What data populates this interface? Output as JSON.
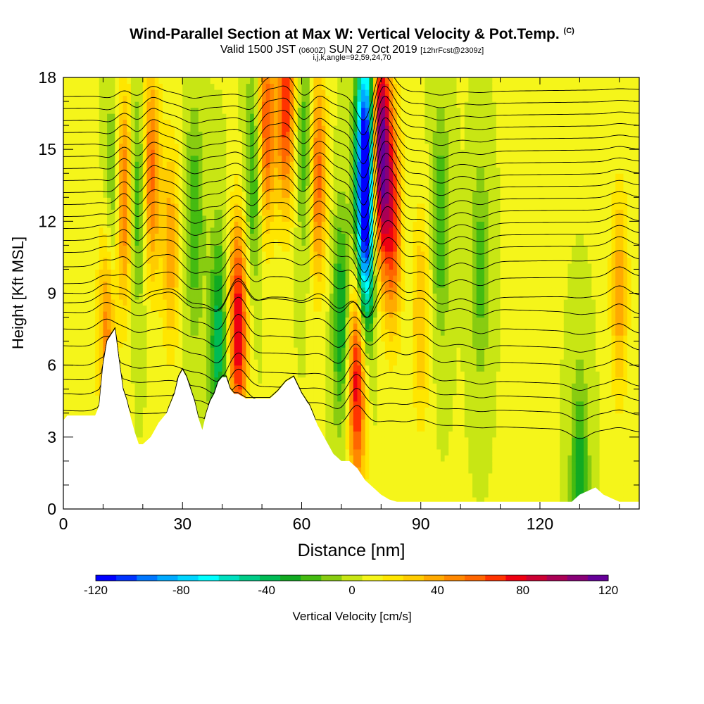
{
  "header": {
    "title_main": "Wind-Parallel Section at Max W: Vertical Velocity & Pot.Temp.",
    "title_copyright": "(C)",
    "valid_prefix": "Valid 1500 JST",
    "valid_utc": "(0600Z)",
    "valid_date": "SUN 27 Oct 2019",
    "forecast": "[12hrFcst@2309z]",
    "subline": "i,j,k,angle=92,59,24,70"
  },
  "chart_data": {
    "type": "heatmap",
    "xlabel": "Distance [nm]",
    "ylabel": "Height [Kft MSL]",
    "xlim": [
      0,
      145
    ],
    "ylim": [
      0,
      18
    ],
    "x_ticks": [
      0,
      30,
      60,
      90,
      120
    ],
    "y_ticks": [
      0,
      3,
      6,
      9,
      12,
      15,
      18
    ],
    "colorbar": {
      "label": "Vertical Velocity [cm/s]",
      "range": [
        -120,
        120
      ],
      "step": 10,
      "tick_labels": [
        -120,
        -80,
        -40,
        0,
        40,
        80,
        120
      ],
      "colors": [
        "#0000ff",
        "#0033ff",
        "#0077ff",
        "#00aaff",
        "#00d5ff",
        "#00ffff",
        "#00e0c0",
        "#00cc88",
        "#00bb55",
        "#11aa22",
        "#44bb11",
        "#88cc11",
        "#c8e614",
        "#f5f51a",
        "#ffe600",
        "#ffcc00",
        "#ffaa00",
        "#ff8800",
        "#ff6600",
        "#ff3300",
        "#ee0011",
        "#cc0033",
        "#aa0055",
        "#880077",
        "#660099"
      ]
    },
    "updraft_cores_w_cm_s": [
      {
        "x": 11,
        "y": 7.5,
        "w": 45
      },
      {
        "x": 15,
        "y": 13,
        "w": 65
      },
      {
        "x": 22,
        "y": 14,
        "w": 55
      },
      {
        "x": 27,
        "y": 11,
        "w": 35
      },
      {
        "x": 44,
        "y": 7.5,
        "w": 80
      },
      {
        "x": 51,
        "y": 16,
        "w": 60
      },
      {
        "x": 56,
        "y": 17,
        "w": 65
      },
      {
        "x": 64,
        "y": 14,
        "w": 55
      },
      {
        "x": 74,
        "y": 5.5,
        "w": 80
      },
      {
        "x": 80,
        "y": 15,
        "w": 115
      },
      {
        "x": 83,
        "y": 12,
        "w": 60
      },
      {
        "x": 90,
        "y": 8,
        "w": 30
      },
      {
        "x": 140,
        "y": 9,
        "w": 35
      }
    ],
    "downdraft_cores_w_cm_s": [
      {
        "x": 13,
        "y": 13,
        "w": -40
      },
      {
        "x": 19,
        "y": 13,
        "w": -35
      },
      {
        "x": 33,
        "y": 12,
        "w": -30
      },
      {
        "x": 39,
        "y": 7,
        "w": -45
      },
      {
        "x": 48,
        "y": 14,
        "w": -35
      },
      {
        "x": 61,
        "y": 15,
        "w": -30
      },
      {
        "x": 70,
        "y": 8,
        "w": -40
      },
      {
        "x": 76,
        "y": 15,
        "w": -110
      },
      {
        "x": 76,
        "y": 11,
        "w": -80
      },
      {
        "x": 95,
        "y": 12,
        "w": -30
      },
      {
        "x": 105,
        "y": 10,
        "w": -25
      },
      {
        "x": 130,
        "y": 1.2,
        "w": -35
      }
    ],
    "terrain_kft": {
      "x": [
        0,
        1,
        2,
        8,
        9,
        10,
        11,
        13,
        14,
        15,
        16,
        17,
        18,
        19,
        20,
        22,
        24,
        26,
        28,
        29,
        30,
        31,
        32,
        33,
        34,
        35,
        36,
        37,
        38,
        39,
        40,
        41,
        42,
        43,
        44,
        46,
        48,
        50,
        52,
        54,
        56,
        58,
        60,
        62,
        64,
        66,
        68,
        70,
        72,
        74,
        76,
        78,
        80,
        82,
        84,
        86,
        88,
        90,
        100,
        110,
        120,
        128,
        130,
        134,
        136,
        140,
        145
      ],
      "y": [
        3.7,
        3.9,
        3.9,
        3.9,
        4.3,
        6.0,
        7.0,
        7.5,
        6.2,
        5.0,
        4.5,
        3.8,
        3.2,
        2.7,
        2.7,
        3.0,
        3.6,
        4.0,
        4.8,
        5.5,
        5.8,
        5.5,
        5.0,
        4.5,
        3.8,
        3.3,
        4.0,
        4.5,
        4.8,
        5.3,
        5.5,
        5.5,
        5.0,
        4.8,
        4.8,
        4.6,
        4.6,
        4.6,
        4.6,
        4.9,
        5.3,
        5.5,
        4.8,
        4.3,
        3.5,
        2.9,
        2.3,
        2.0,
        2.0,
        1.7,
        1.2,
        0.9,
        0.6,
        0.4,
        0.3,
        0.3,
        0.3,
        0.3,
        0.3,
        0.3,
        0.3,
        0.3,
        0.6,
        0.9,
        0.6,
        0.3,
        0.3
      ]
    },
    "theta_isentropes_kft": [
      3.3,
      4.0,
      4.6,
      5.2,
      6.0,
      6.7,
      7.4,
      8.2,
      9.0,
      9.8,
      10.5,
      11.1,
      11.6,
      12.1,
      12.6,
      13.1,
      13.6,
      14.1,
      14.6,
      15.1,
      15.6,
      16.1,
      16.6,
      17.1,
      17.6
    ]
  }
}
